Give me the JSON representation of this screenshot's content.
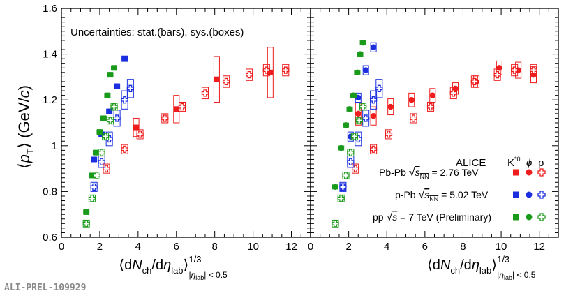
{
  "chart_data": {
    "type": "scatter",
    "ylabel_parts": {
      "open": "⟨",
      "p": "p",
      "sub": "T",
      "close": "⟩",
      "unit": " (GeV/",
      "c": "c",
      "paren": ")"
    },
    "xlabel_parts": {
      "open": "⟨d",
      "N": "N",
      "ch": "ch",
      "mid": "/d",
      "eta": "η",
      "lab": "lab",
      "close": "⟩",
      "exp": "1/3",
      "sub_a": "|",
      "sub_eta": "η",
      "sub_lab": "lab",
      "sub_b": "| < 0.5"
    },
    "ylim": [
      0.6,
      1.6
    ],
    "xlim": [
      0,
      13
    ],
    "xticks": [
      "0",
      "2",
      "4",
      "6",
      "8",
      "10",
      "12"
    ],
    "yticks": [
      "0.6",
      "0.8",
      "1",
      "1.2",
      "1.4",
      "1.6"
    ],
    "uncertainty_note": "Uncertainties: stat.(bars), sys.(boxes)",
    "legend": {
      "experiment": "ALICE",
      "col_k0": "K",
      "col_k0_sup": "*0",
      "col_phi": "ϕ",
      "col_p": "p",
      "rows": [
        {
          "sys": "Pb-Pb",
          "energy_pre": "s",
          "energy_sub": "NN",
          "energy_val": " = 2.76 TeV",
          "color": "#ee1c1c"
        },
        {
          "sys": "p-Pb",
          "energy_pre": "s",
          "energy_sub": "NN",
          "energy_val": " = 5.02 TeV",
          "color": "#1a2ee0"
        },
        {
          "sys": "pp",
          "energy_pre": "s",
          "energy_sub": "",
          "energy_val": " = 7 TeV (Preliminary)",
          "color": "#1a9a1a"
        }
      ]
    },
    "panels": [
      {
        "name": "K*0 and protons",
        "series": [
          {
            "name": "Pb-Pb K*0",
            "system": "PbPb",
            "particle": "K*0",
            "x": [
              3.9,
              6.0,
              8.1,
              10.9
            ],
            "y": [
              1.08,
              1.16,
              1.29,
              1.32
            ],
            "sys": [
              0.04,
              0.06,
              0.1,
              0.11
            ]
          },
          {
            "name": "Pb-Pb p",
            "system": "PbPb",
            "particle": "p",
            "x": [
              2.35,
              3.3,
              4.1,
              5.4,
              6.3,
              7.5,
              8.6,
              9.8,
              10.7,
              11.7
            ],
            "y": [
              0.9,
              0.985,
              1.05,
              1.12,
              1.17,
              1.23,
              1.28,
              1.31,
              1.33,
              1.33
            ],
            "sys": [
              0.02,
              0.02,
              0.02,
              0.02,
              0.02,
              0.025,
              0.025,
              0.025,
              0.025,
              0.025
            ]
          },
          {
            "name": "p-Pb K*0",
            "system": "pPb",
            "particle": "K*0",
            "x": [
              1.7,
              2.1,
              2.5,
              2.9,
              3.3
            ],
            "y": [
              0.94,
              1.05,
              1.15,
              1.26,
              1.38
            ],
            "sys": [
              0.01,
              0.01,
              0.01,
              0.01,
              0.012
            ]
          },
          {
            "name": "p-Pb p",
            "system": "pPb",
            "particle": "p",
            "x": [
              1.7,
              2.1,
              2.5,
              2.9,
              3.3,
              3.6
            ],
            "y": [
              0.82,
              0.93,
              1.03,
              1.12,
              1.2,
              1.25
            ],
            "sys": [
              0.02,
              0.025,
              0.03,
              0.035,
              0.04,
              0.04
            ]
          },
          {
            "name": "pp K*0",
            "system": "pp",
            "particle": "K*0",
            "x": [
              1.3,
              1.6,
              1.8,
              2.0,
              2.2,
              2.4,
              2.55,
              2.75
            ],
            "y": [
              0.71,
              0.87,
              0.97,
              1.06,
              1.12,
              1.22,
              1.31,
              1.34
            ],
            "sys": [
              0.008,
              0.008,
              0.008,
              0.008,
              0.008,
              0.008,
              0.008,
              0.008
            ]
          },
          {
            "name": "pp p",
            "system": "pp",
            "particle": "p",
            "x": [
              1.3,
              1.6,
              1.85,
              2.1,
              2.3,
              2.55,
              2.75
            ],
            "y": [
              0.66,
              0.77,
              0.87,
              0.97,
              1.04,
              1.11,
              1.17
            ],
            "sys": [
              0.015,
              0.015,
              0.015,
              0.015,
              0.015,
              0.015,
              0.015
            ]
          }
        ]
      },
      {
        "name": "phi and protons",
        "series": [
          {
            "name": "Pb-Pb phi",
            "system": "PbPb",
            "particle": "phi",
            "x": [
              2.5,
              3.3,
              4.2,
              5.3,
              6.4,
              7.6,
              8.7,
              9.9,
              10.9,
              11.7
            ],
            "y": [
              1.14,
              1.13,
              1.17,
              1.2,
              1.22,
              1.25,
              1.28,
              1.34,
              1.33,
              1.31
            ],
            "sys": [
              0.05,
              0.04,
              0.035,
              0.03,
              0.03,
              0.025,
              0.025,
              0.03,
              0.035,
              0.035
            ]
          },
          {
            "name": "Pb-Pb p",
            "system": "PbPb",
            "particle": "p",
            "x": [
              2.35,
              3.3,
              4.1,
              5.4,
              6.3,
              7.5,
              8.6,
              9.8,
              10.7,
              11.7
            ],
            "y": [
              0.9,
              0.985,
              1.05,
              1.12,
              1.17,
              1.23,
              1.28,
              1.31,
              1.33,
              1.33
            ],
            "sys": [
              0.02,
              0.02,
              0.02,
              0.02,
              0.02,
              0.025,
              0.025,
              0.025,
              0.025,
              0.025
            ]
          },
          {
            "name": "p-Pb phi",
            "system": "pPb",
            "particle": "phi",
            "x": [
              1.7,
              2.1,
              2.5,
              2.9,
              3.3
            ],
            "y": [
              0.82,
              1.04,
              1.21,
              1.33,
              1.43
            ],
            "sys": [
              0.015,
              0.02,
              0.02,
              0.02,
              0.02
            ]
          },
          {
            "name": "p-Pb p",
            "system": "pPb",
            "particle": "p",
            "x": [
              1.7,
              2.1,
              2.5,
              2.9,
              3.3,
              3.6
            ],
            "y": [
              0.82,
              0.93,
              1.03,
              1.12,
              1.2,
              1.25
            ],
            "sys": [
              0.02,
              0.025,
              0.03,
              0.035,
              0.04,
              0.04
            ]
          },
          {
            "name": "pp phi",
            "system": "pp",
            "particle": "phi",
            "x": [
              1.3,
              1.6,
              1.85,
              2.05,
              2.25,
              2.45,
              2.6,
              2.75
            ],
            "y": [
              0.82,
              0.99,
              1.09,
              1.16,
              1.22,
              1.32,
              1.4,
              1.45
            ],
            "sys": [
              0.008,
              0.008,
              0.008,
              0.008,
              0.008,
              0.008,
              0.008,
              0.008
            ]
          },
          {
            "name": "pp p",
            "system": "pp",
            "particle": "p",
            "x": [
              1.3,
              1.6,
              1.85,
              2.1,
              2.3,
              2.55,
              2.75
            ],
            "y": [
              0.66,
              0.77,
              0.87,
              0.97,
              1.04,
              1.11,
              1.17
            ],
            "sys": [
              0.015,
              0.015,
              0.015,
              0.015,
              0.015,
              0.015,
              0.015
            ]
          }
        ]
      }
    ]
  },
  "footer": {
    "prelim_id": "ALI-PREL-109929"
  },
  "colors": {
    "PbPb": "#ee1c1c",
    "pPb": "#1a2ee0",
    "pp": "#1a9a1a"
  }
}
